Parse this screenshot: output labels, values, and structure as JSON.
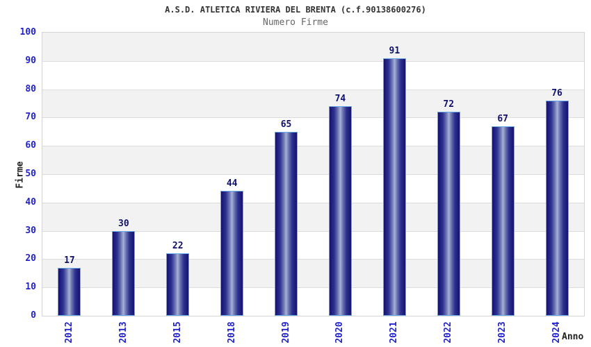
{
  "header": {
    "title": "A.S.D. ATLETICA RIVIERA DEL BRENTA (c.f.90138600276)",
    "subtitle": "Numero Firme"
  },
  "chart_data": {
    "type": "bar",
    "title": "Numero Firme",
    "categories": [
      "2012",
      "2013",
      "2015",
      "2018",
      "2019",
      "2020",
      "2021",
      "2022",
      "2023",
      "2024"
    ],
    "values": [
      17,
      30,
      22,
      44,
      65,
      74,
      91,
      72,
      67,
      76
    ],
    "xlabel": "Anno",
    "ylabel": "Firme",
    "ylim": [
      0,
      100
    ],
    "ytick_step": 10,
    "ytick_labels": [
      "0",
      "10",
      "20",
      "30",
      "40",
      "50",
      "60",
      "70",
      "80",
      "90",
      "100"
    ],
    "grid": "horizontal-bands-alternating",
    "legend_position": "none",
    "colors": {
      "tick_label": "#2323cd",
      "value_label": "#10106e",
      "bar_edge_dark": "#15156a",
      "bar_center_light": "#a9b0d8",
      "bar_border": "#64a9e6",
      "band_gray": "#f2f2f2",
      "band_white": "#ffffff",
      "gridline": "#dcdcdc",
      "plot_border": "#d4d4d4",
      "title_color": "#333333",
      "subtitle_color": "#666666",
      "axis_title_color": "#222222"
    }
  }
}
